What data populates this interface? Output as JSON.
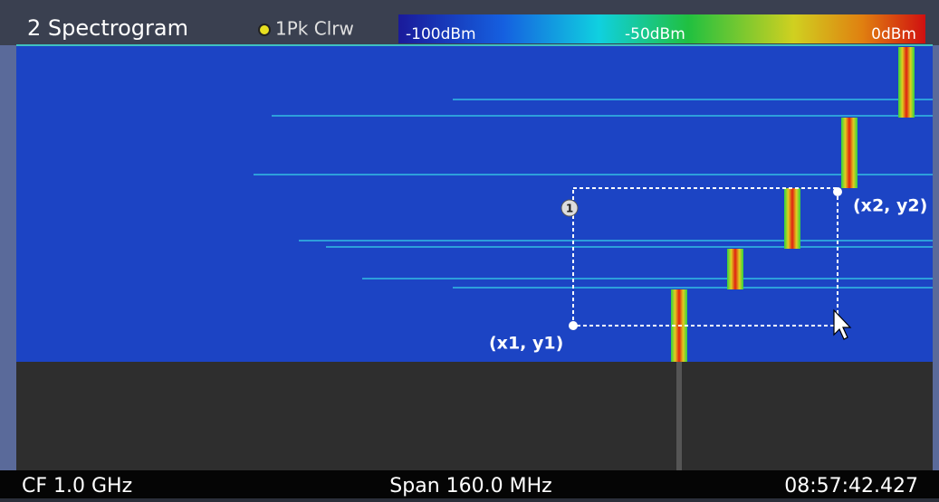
{
  "window": {
    "title": "2 Spectrogram",
    "trace": "1Pk Clrw"
  },
  "color_scale": {
    "labels": [
      "-100dBm",
      "-50dBm",
      "0dBm"
    ]
  },
  "marker": {
    "label": "1"
  },
  "annotations": {
    "top_right": "(x2, y2)",
    "bottom_left": "(x1, y1)"
  },
  "status_bar": {
    "center_frequency": "CF 1.0 GHz",
    "span": "Span 160.0 MHz",
    "time": "08:57:42.427"
  }
}
